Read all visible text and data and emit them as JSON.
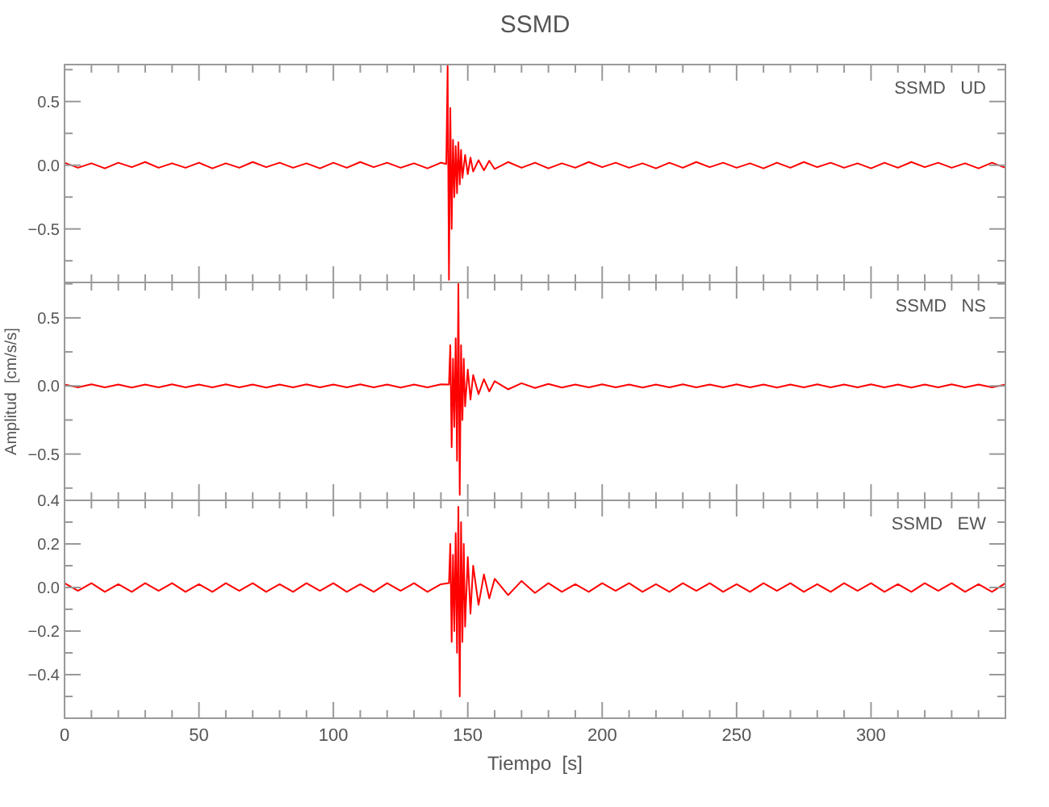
{
  "chart_data": [
    {
      "type": "line",
      "title": "SSMD",
      "annotations": [
        "SSMD   UD"
      ],
      "xlim": [
        0,
        350
      ],
      "ylim": [
        -0.92,
        0.79
      ],
      "xticks": [
        0,
        {
          "value": 10,
          "label": null
        },
        {
          "value": 20,
          "label": null
        },
        {
          "value": 30,
          "label": null
        },
        {
          "value": 40,
          "label": null
        },
        50,
        {
          "value": 60,
          "label": null
        },
        {
          "value": 70,
          "label": null
        },
        {
          "value": 80,
          "label": null
        },
        {
          "value": 90,
          "label": null
        },
        100,
        {
          "value": 110,
          "label": null
        },
        {
          "value": 120,
          "label": null
        },
        {
          "value": 130,
          "label": null
        },
        {
          "value": 140,
          "label": null
        },
        150,
        {
          "value": 160,
          "label": null
        },
        {
          "value": 170,
          "label": null
        },
        {
          "value": 180,
          "label": null
        },
        {
          "value": 190,
          "label": null
        },
        200,
        {
          "value": 210,
          "label": null
        },
        {
          "value": 220,
          "label": null
        },
        {
          "value": 230,
          "label": null
        },
        {
          "value": 240,
          "label": null
        },
        250,
        {
          "value": 260,
          "label": null
        },
        {
          "value": 270,
          "label": null
        },
        {
          "value": 280,
          "label": null
        },
        {
          "value": 290,
          "label": null
        },
        300,
        {
          "value": 310,
          "label": null
        },
        {
          "value": 320,
          "label": null
        },
        {
          "value": 330,
          "label": null
        },
        {
          "value": 340,
          "label": null
        }
      ],
      "yticks": [
        {
          "value": -0.75,
          "label": null
        },
        -0.5,
        {
          "value": -0.25,
          "label": null
        },
        {
          "value": 0,
          "label": "0.0"
        },
        {
          "value": 0.25,
          "label": null
        },
        0.5,
        {
          "value": 0.75,
          "label": null
        }
      ],
      "tick_labels": "y",
      "series": [
        {
          "color": "#ff0000",
          "x": [
            0,
            5,
            10,
            15,
            20,
            25,
            30,
            35,
            40,
            45,
            50,
            55,
            60,
            65,
            70,
            75,
            80,
            85,
            90,
            95,
            100,
            105,
            110,
            115,
            120,
            125,
            130,
            135,
            140,
            142,
            142.5,
            143,
            143.5,
            144,
            144.5,
            145,
            145.5,
            146,
            146.5,
            147,
            147.5,
            148,
            149,
            150,
            151,
            152,
            154,
            156,
            158,
            160,
            165,
            170,
            175,
            180,
            185,
            190,
            195,
            200,
            205,
            210,
            215,
            220,
            225,
            230,
            235,
            240,
            245,
            250,
            255,
            260,
            265,
            270,
            275,
            280,
            285,
            290,
            295,
            300,
            305,
            310,
            315,
            320,
            325,
            330,
            335,
            340,
            345,
            350
          ],
          "values": [
            0.02,
            -0.02,
            0.015,
            -0.025,
            0.02,
            -0.015,
            0.025,
            -0.02,
            0.015,
            -0.02,
            0.02,
            -0.025,
            0.015,
            -0.02,
            0.025,
            -0.015,
            0.02,
            -0.02,
            0.015,
            -0.025,
            0.02,
            -0.02,
            0.025,
            -0.015,
            0.02,
            -0.02,
            0.015,
            -0.025,
            0.02,
            0.01,
            0.78,
            -0.9,
            0.45,
            -0.5,
            0.2,
            -0.25,
            0.15,
            -0.22,
            0.18,
            -0.15,
            0.12,
            -0.1,
            0.08,
            -0.07,
            0.06,
            -0.05,
            0.04,
            -0.04,
            0.035,
            -0.03,
            0.025,
            -0.02,
            0.02,
            -0.025,
            0.015,
            -0.02,
            0.025,
            -0.015,
            0.02,
            -0.02,
            0.015,
            -0.025,
            0.02,
            -0.02,
            0.025,
            -0.015,
            0.02,
            -0.02,
            0.015,
            -0.025,
            0.02,
            -0.02,
            0.025,
            -0.015,
            0.02,
            -0.02,
            0.015,
            -0.025,
            0.02,
            -0.02,
            0.025,
            -0.015,
            0.02,
            -0.02,
            0.015,
            -0.025,
            0.02,
            -0.02
          ]
        }
      ]
    },
    {
      "type": "line",
      "ylabel": "Amplitud  [cm/s/s]",
      "annotations": [
        "SSMD   NS"
      ],
      "xlim": [
        0,
        350
      ],
      "ylim": [
        -0.84,
        0.76
      ],
      "xticks": [
        0,
        {
          "value": 10,
          "label": null
        },
        {
          "value": 20,
          "label": null
        },
        {
          "value": 30,
          "label": null
        },
        {
          "value": 40,
          "label": null
        },
        50,
        {
          "value": 60,
          "label": null
        },
        {
          "value": 70,
          "label": null
        },
        {
          "value": 80,
          "label": null
        },
        {
          "value": 90,
          "label": null
        },
        100,
        {
          "value": 110,
          "label": null
        },
        {
          "value": 120,
          "label": null
        },
        {
          "value": 130,
          "label": null
        },
        {
          "value": 140,
          "label": null
        },
        150,
        {
          "value": 160,
          "label": null
        },
        {
          "value": 170,
          "label": null
        },
        {
          "value": 180,
          "label": null
        },
        {
          "value": 190,
          "label": null
        },
        200,
        {
          "value": 210,
          "label": null
        },
        {
          "value": 220,
          "label": null
        },
        {
          "value": 230,
          "label": null
        },
        {
          "value": 240,
          "label": null
        },
        250,
        {
          "value": 260,
          "label": null
        },
        {
          "value": 270,
          "label": null
        },
        {
          "value": 280,
          "label": null
        },
        {
          "value": 290,
          "label": null
        },
        300,
        {
          "value": 310,
          "label": null
        },
        {
          "value": 320,
          "label": null
        },
        {
          "value": 330,
          "label": null
        },
        {
          "value": 340,
          "label": null
        }
      ],
      "yticks": [
        {
          "value": -0.75,
          "label": null
        },
        -0.5,
        {
          "value": -0.25,
          "label": null
        },
        {
          "value": 0,
          "label": "0.0"
        },
        {
          "value": 0.25,
          "label": null
        },
        0.5,
        {
          "value": 0.75,
          "label": null
        }
      ],
      "tick_labels": "y",
      "series": [
        {
          "color": "#ff0000",
          "x": [
            0,
            5,
            10,
            15,
            20,
            25,
            30,
            35,
            40,
            45,
            50,
            55,
            60,
            65,
            70,
            75,
            80,
            85,
            90,
            95,
            100,
            105,
            110,
            115,
            120,
            125,
            130,
            135,
            140,
            143,
            143.5,
            144,
            144.5,
            145,
            145.5,
            146,
            146.5,
            147,
            147.5,
            148,
            148.5,
            149,
            150,
            151,
            152,
            154,
            156,
            158,
            160,
            165,
            170,
            175,
            180,
            185,
            190,
            195,
            200,
            205,
            210,
            215,
            220,
            225,
            230,
            235,
            240,
            245,
            250,
            255,
            260,
            265,
            270,
            275,
            280,
            285,
            290,
            295,
            300,
            305,
            310,
            315,
            320,
            325,
            330,
            335,
            340,
            345,
            350
          ],
          "values": [
            0.01,
            -0.01,
            0.012,
            -0.01,
            0.01,
            -0.012,
            0.01,
            -0.01,
            0.012,
            -0.01,
            0.01,
            -0.01,
            0.012,
            -0.01,
            0.01,
            -0.012,
            0.01,
            -0.01,
            0.012,
            -0.01,
            0.01,
            -0.01,
            0.012,
            -0.01,
            0.01,
            -0.012,
            0.01,
            -0.01,
            0.012,
            0.01,
            0.3,
            -0.45,
            0.2,
            -0.3,
            0.35,
            -0.55,
            0.75,
            -0.8,
            0.3,
            -0.25,
            0.2,
            -0.15,
            0.12,
            -0.1,
            0.08,
            -0.06,
            0.05,
            -0.04,
            0.035,
            -0.025,
            0.02,
            -0.015,
            0.015,
            -0.012,
            0.01,
            -0.01,
            0.012,
            -0.01,
            0.01,
            -0.012,
            0.01,
            -0.01,
            0.012,
            -0.01,
            0.01,
            -0.01,
            0.012,
            -0.01,
            0.01,
            -0.012,
            0.01,
            -0.01,
            0.012,
            -0.01,
            0.01,
            -0.01,
            0.012,
            -0.01,
            0.01,
            -0.012,
            0.01,
            -0.01,
            0.012,
            -0.01,
            0.01,
            -0.01,
            0.01
          ]
        }
      ]
    },
    {
      "type": "line",
      "xlabel": "Tiempo  [s]",
      "annotations": [
        "SSMD   EW"
      ],
      "xlim": [
        0,
        350
      ],
      "ylim": [
        -0.6,
        0.4
      ],
      "xticks": [
        0,
        {
          "value": 10,
          "label": null
        },
        {
          "value": 20,
          "label": null
        },
        {
          "value": 30,
          "label": null
        },
        {
          "value": 40,
          "label": null
        },
        50,
        {
          "value": 60,
          "label": null
        },
        {
          "value": 70,
          "label": null
        },
        {
          "value": 80,
          "label": null
        },
        {
          "value": 90,
          "label": null
        },
        100,
        {
          "value": 110,
          "label": null
        },
        {
          "value": 120,
          "label": null
        },
        {
          "value": 130,
          "label": null
        },
        {
          "value": 140,
          "label": null
        },
        150,
        {
          "value": 160,
          "label": null
        },
        {
          "value": 170,
          "label": null
        },
        {
          "value": 180,
          "label": null
        },
        {
          "value": 190,
          "label": null
        },
        200,
        {
          "value": 210,
          "label": null
        },
        {
          "value": 220,
          "label": null
        },
        {
          "value": 230,
          "label": null
        },
        {
          "value": 240,
          "label": null
        },
        250,
        {
          "value": 260,
          "label": null
        },
        {
          "value": 270,
          "label": null
        },
        {
          "value": 280,
          "label": null
        },
        {
          "value": 290,
          "label": null
        },
        300,
        {
          "value": 310,
          "label": null
        },
        {
          "value": 320,
          "label": null
        },
        {
          "value": 330,
          "label": null
        },
        {
          "value": 340,
          "label": null
        }
      ],
      "yticks": [
        {
          "value": -0.5,
          "label": null
        },
        -0.4,
        {
          "value": -0.3,
          "label": null
        },
        -0.2,
        {
          "value": -0.1,
          "label": null
        },
        {
          "value": 0,
          "label": "0.0"
        },
        {
          "value": 0.1,
          "label": null
        },
        0.2,
        {
          "value": 0.3,
          "label": null
        },
        0.4
      ],
      "series": [
        {
          "color": "#ff0000",
          "x": [
            0,
            5,
            10,
            15,
            20,
            25,
            30,
            35,
            40,
            45,
            50,
            55,
            60,
            65,
            70,
            75,
            80,
            85,
            90,
            95,
            100,
            105,
            110,
            115,
            120,
            125,
            130,
            135,
            140,
            143,
            143.5,
            144,
            144.5,
            145,
            145.5,
            146,
            146.5,
            147,
            147.5,
            148,
            148.5,
            149,
            150,
            151,
            152,
            154,
            156,
            158,
            160,
            165,
            170,
            175,
            180,
            185,
            190,
            195,
            200,
            205,
            210,
            215,
            220,
            225,
            230,
            235,
            240,
            245,
            250,
            255,
            260,
            265,
            270,
            275,
            280,
            285,
            290,
            295,
            300,
            305,
            310,
            315,
            320,
            325,
            330,
            335,
            340,
            345,
            350
          ],
          "values": [
            0.02,
            -0.015,
            0.02,
            -0.02,
            0.015,
            -0.02,
            0.02,
            -0.015,
            0.02,
            -0.02,
            0.015,
            -0.02,
            0.02,
            -0.015,
            0.02,
            -0.02,
            0.015,
            -0.02,
            0.02,
            -0.015,
            0.02,
            -0.02,
            0.015,
            -0.02,
            0.02,
            -0.015,
            0.02,
            -0.02,
            0.015,
            0.02,
            0.2,
            -0.25,
            0.15,
            -0.2,
            0.25,
            -0.3,
            0.37,
            -0.5,
            0.3,
            -0.25,
            0.2,
            -0.18,
            0.14,
            -0.12,
            0.1,
            -0.08,
            0.06,
            -0.05,
            0.04,
            -0.035,
            0.03,
            -0.025,
            0.02,
            -0.02,
            0.015,
            -0.02,
            0.02,
            -0.015,
            0.02,
            -0.02,
            0.015,
            -0.02,
            0.02,
            -0.015,
            0.02,
            -0.02,
            0.015,
            -0.02,
            0.02,
            -0.015,
            0.02,
            -0.02,
            0.015,
            -0.02,
            0.02,
            -0.015,
            0.02,
            -0.02,
            0.015,
            -0.02,
            0.02,
            -0.015,
            0.02,
            -0.02,
            0.015,
            -0.02,
            0.02
          ]
        }
      ]
    }
  ]
}
